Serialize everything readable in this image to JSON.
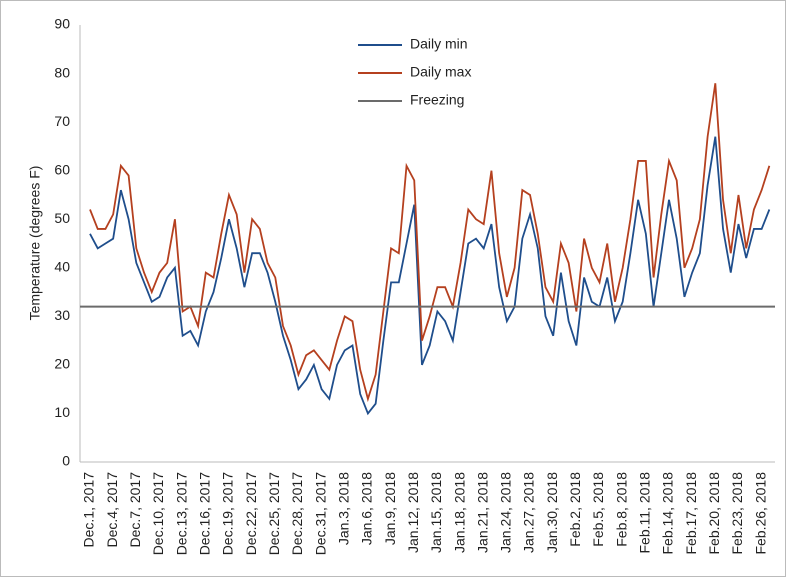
{
  "chart_data": {
    "type": "line",
    "ylabel": "Temperature (degrees F)",
    "categories": [
      "Dec.1, 2017",
      null,
      null,
      "Dec.4, 2017",
      null,
      null,
      "Dec.7, 2017",
      null,
      null,
      "Dec.10, 2017",
      null,
      null,
      "Dec.13, 2017",
      null,
      null,
      "Dec.16, 2017",
      null,
      null,
      "Dec.19, 2017",
      null,
      null,
      "Dec.22, 2017",
      null,
      null,
      "Dec.25, 2017",
      null,
      null,
      "Dec.28, 2017",
      null,
      null,
      "Dec.31, 2017",
      null,
      null,
      "Jan.3, 2018",
      null,
      null,
      "Jan.6, 2018",
      null,
      null,
      "Jan.9, 2018",
      null,
      null,
      "Jan.12, 2018",
      null,
      null,
      "Jan.15, 2018",
      null,
      null,
      "Jan.18, 2018",
      null,
      null,
      "Jan.21, 2018",
      null,
      null,
      "Jan.24, 2018",
      null,
      null,
      "Jan.27, 2018",
      null,
      null,
      "Jan.30, 2018",
      null,
      null,
      "Feb.2, 2018",
      null,
      null,
      "Feb.5, 2018",
      null,
      null,
      "Feb.8, 2018",
      null,
      null,
      "Feb.11, 2018",
      null,
      null,
      "Feb.14, 2018",
      null,
      null,
      "Feb.17, 2018",
      null,
      null,
      "Feb.20, 2018",
      null,
      null,
      "Feb.23, 2018",
      null,
      null,
      "Feb.26, 2018",
      null
    ],
    "series": [
      {
        "name": "Daily min",
        "color": "#1f4e8c",
        "values": [
          47,
          44,
          45,
          46,
          56,
          50,
          41,
          37,
          33,
          34,
          38,
          40,
          26,
          27,
          24,
          31,
          35,
          42,
          50,
          44,
          36,
          43,
          43,
          39,
          33,
          26,
          21,
          15,
          17,
          20,
          15,
          13,
          20,
          23,
          24,
          14,
          10,
          12,
          25,
          37,
          37,
          45,
          53,
          20,
          24,
          31,
          29,
          25,
          35,
          45,
          46,
          44,
          49,
          36,
          29,
          32,
          46,
          51,
          44,
          30,
          26,
          39,
          29,
          24,
          38,
          33,
          32,
          38,
          29,
          33,
          43,
          54,
          47,
          32,
          43,
          54,
          46,
          34,
          39,
          43,
          57,
          67,
          48,
          39,
          49,
          42,
          48,
          48,
          52
        ]
      },
      {
        "name": "Daily max",
        "color": "#b5401f",
        "values": [
          52,
          48,
          48,
          51,
          61,
          59,
          44,
          39,
          35,
          39,
          41,
          50,
          31,
          32,
          28,
          39,
          38,
          47,
          55,
          51,
          39,
          50,
          48,
          41,
          38,
          28,
          24,
          18,
          22,
          23,
          21,
          19,
          25,
          30,
          29,
          19,
          13,
          18,
          31,
          44,
          43,
          61,
          58,
          25,
          30,
          36,
          36,
          32,
          41,
          52,
          50,
          49,
          60,
          43,
          34,
          40,
          56,
          55,
          47,
          36,
          33,
          45,
          41,
          31,
          46,
          40,
          37,
          45,
          33,
          40,
          50,
          62,
          62,
          38,
          51,
          62,
          58,
          40,
          44,
          50,
          67,
          78,
          54,
          43,
          55,
          44,
          52,
          56,
          61
        ]
      },
      {
        "name": "Freezing",
        "color": "#6b6b6b",
        "value": 32
      }
    ],
    "ylim": [
      0,
      90
    ],
    "yticks": [
      0,
      10,
      20,
      30,
      40,
      50,
      60,
      70,
      80,
      90
    ],
    "grid": false
  }
}
